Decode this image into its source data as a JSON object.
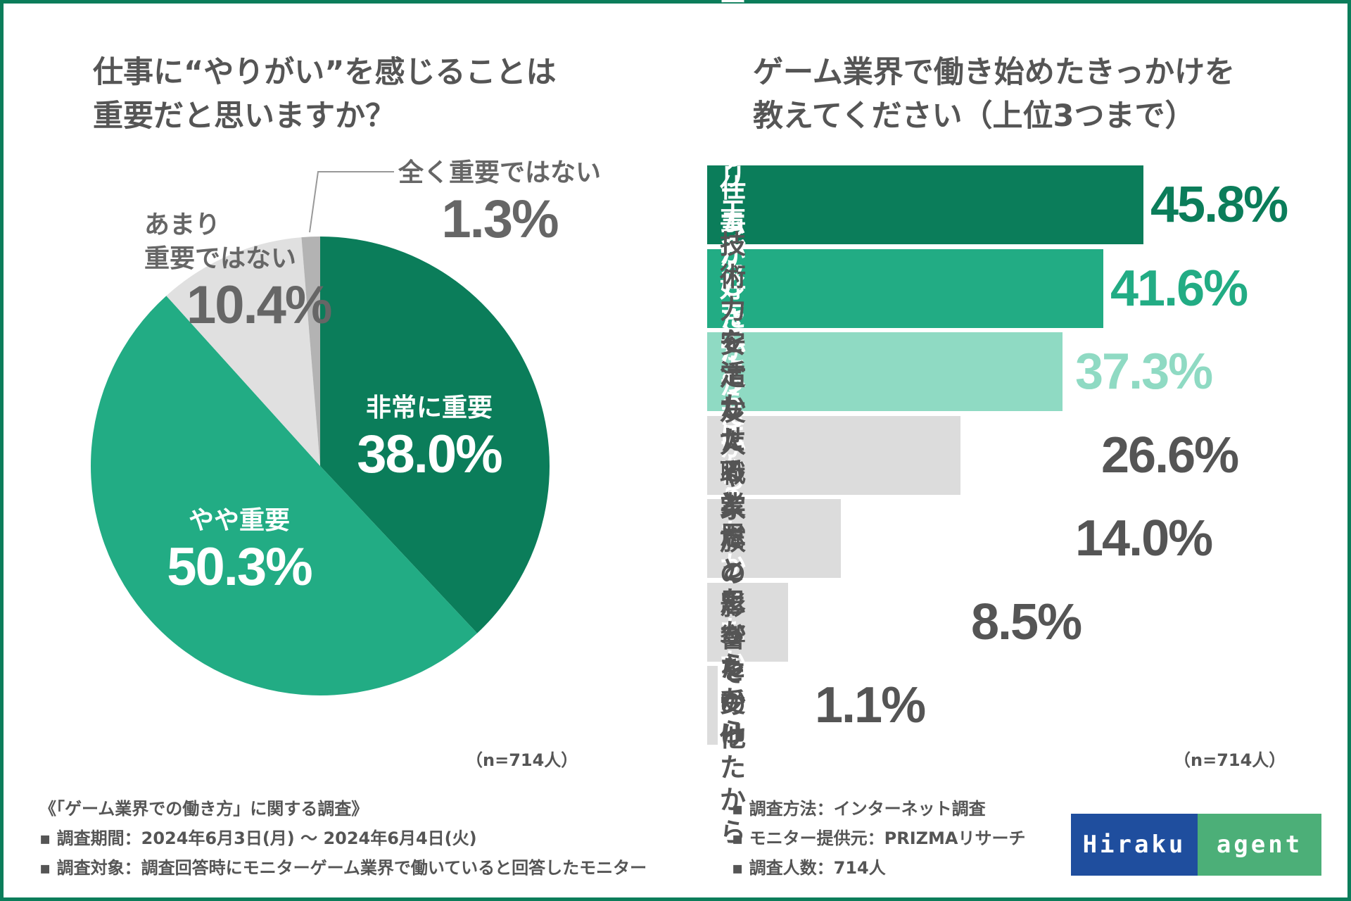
{
  "colors": {
    "frame": "#0b7d5a",
    "very_important": "#0b7d5a",
    "somewhat_important": "#22ac84",
    "not_very_important": "#e0e0e0",
    "not_at_all_important": "#b3b3b3",
    "bar_1": "#0b7d5a",
    "bar_2": "#22ac84",
    "bar_3": "#8fdac3",
    "bar_grey": "#dcdcdc",
    "text_grey": "#555555"
  },
  "left": {
    "title_line1": "仕事に“やりがい”を感じることは",
    "title_line2": "重要だと思いますか？",
    "n_note": "（n=714人）"
  },
  "right": {
    "title_line1": "ゲーム業界で働き始めたきっかけを",
    "title_line2": "教えてください（上位3つまで）",
    "n_note": "（n=714人）"
  },
  "chart_data": [
    {
      "type": "pie",
      "title": "仕事に“やりがい”を感じることは重要だと思いますか？",
      "slices": [
        {
          "label": "非常に重要",
          "value": 38.0,
          "display": "38.0%"
        },
        {
          "label": "やや重要",
          "value": 50.3,
          "display": "50.3%"
        },
        {
          "label_line1": "あまり",
          "label_line2": "重要ではない",
          "label": "あまり重要ではない",
          "value": 10.4,
          "display": "10.4%"
        },
        {
          "label": "全く重要ではない",
          "value": 1.3,
          "display": "1.3%"
        }
      ],
      "n": "n=714人"
    },
    {
      "type": "bar",
      "orientation": "horizontal",
      "title": "ゲーム業界で働き始めたきっかけを教えてください（上位3つまで）",
      "categories": [
        "クリエイティブな仕事が\nしたかったから",
        "ゲームが好きだから",
        "憧れるクリエイターのように\nなりたかったから",
        "技術力を活かせると思ったから",
        "安定した職業だと思ったから",
        "友人や家族の影響を\n受けたから",
        "その他"
      ],
      "values": [
        45.8,
        41.6,
        37.3,
        26.6,
        14.0,
        8.5,
        1.1
      ],
      "labels": [
        "45.8%",
        "41.6%",
        "37.3%",
        "26.6%",
        "14.0%",
        "8.5%",
        "1.1%"
      ],
      "xlim": [
        0,
        48
      ],
      "n": "n=714人"
    }
  ],
  "footer": {
    "survey_name": "《「ゲーム業界での働き方」に関する調査》",
    "period": "▪ 調査期間：2024年6月3日(月) 〜 2024年6月4日(火)",
    "target": "▪ 調査対象：調査回答時にモニターゲーム業界で働いていると回答したモニター",
    "method": "▪ 調査方法：インターネット調査",
    "provider": "▪ モニター提供元：PRIZMAリサーチ",
    "count": "▪ 調査人数：714人"
  },
  "logo": {
    "left": "Hiraku",
    "right": "agent"
  }
}
